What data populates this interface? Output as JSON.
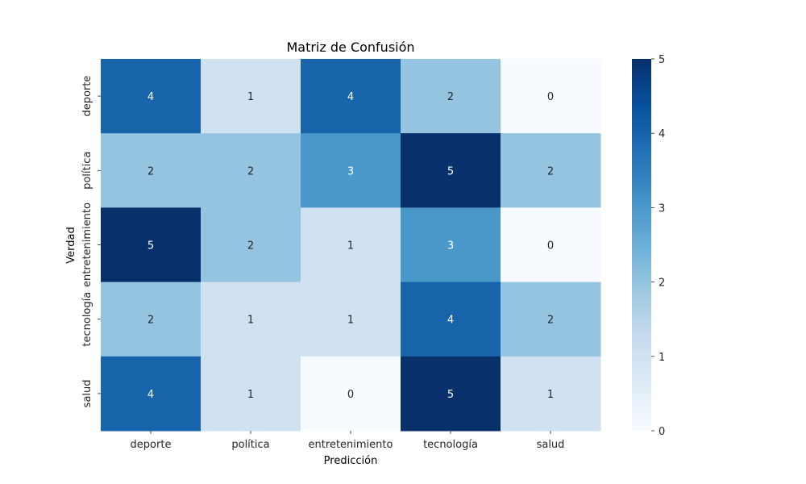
{
  "chart_data": {
    "type": "heatmap",
    "title": "Matriz de Confusión",
    "xlabel": "Predicción",
    "ylabel": "Verdad",
    "x_categories": [
      "deporte",
      "política",
      "entretenimiento",
      "tecnología",
      "salud"
    ],
    "y_categories": [
      "deporte",
      "política",
      "entretenimiento",
      "tecnología",
      "salud"
    ],
    "values": [
      [
        4,
        1,
        4,
        2,
        0
      ],
      [
        2,
        2,
        3,
        5,
        2
      ],
      [
        5,
        2,
        1,
        3,
        0
      ],
      [
        2,
        1,
        1,
        4,
        2
      ],
      [
        4,
        1,
        0,
        5,
        1
      ]
    ],
    "colormap": "Blues",
    "vmin": 0,
    "vmax": 5,
    "colorbar_ticks": [
      0,
      1,
      2,
      3,
      4,
      5
    ]
  }
}
